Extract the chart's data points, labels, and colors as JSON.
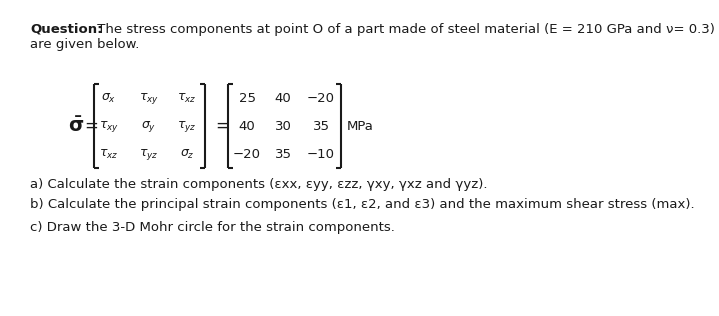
{
  "title_bold": "Question:",
  "title_rest": " The stress components at point O of a part made of steel material (E = 210 GPa and ν= 0.3)",
  "title_line2": "are given below.",
  "matrix_values": [
    [
      "25",
      "40",
      "−20"
    ],
    [
      "40",
      "30",
      "35"
    ],
    [
      "−20",
      "35",
      "−10"
    ]
  ],
  "matrix_unit": "MPa",
  "part_a": "a) Calculate the strain components (εxx, εyy, εzz, γxy, γxz and γyz).",
  "part_b": "b) Calculate the principal strain components (ε1, ε2, and ε3) and the maximum shear stress (max).",
  "part_c": "c) Draw the 3-D Mohr circle for the strain components.",
  "bg_color": "#ffffff",
  "text_color": "#1a1a1a",
  "font_size": 9.5,
  "matrix_font_size": 9.5,
  "bracket_color": "#1a1a1a"
}
